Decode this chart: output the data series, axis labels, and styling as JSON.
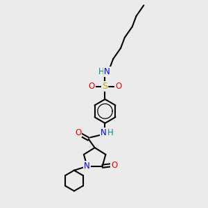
{
  "bg_color": "#ebebeb",
  "atom_colors": {
    "C": "#000000",
    "N": "#0000ee",
    "O": "#ee0000",
    "S": "#bbaa00",
    "HN": "#008888"
  },
  "bond_color": "#000000",
  "bond_width": 1.5,
  "figsize": [
    3.0,
    3.0
  ],
  "dpi": 100,
  "fs": 8.5
}
